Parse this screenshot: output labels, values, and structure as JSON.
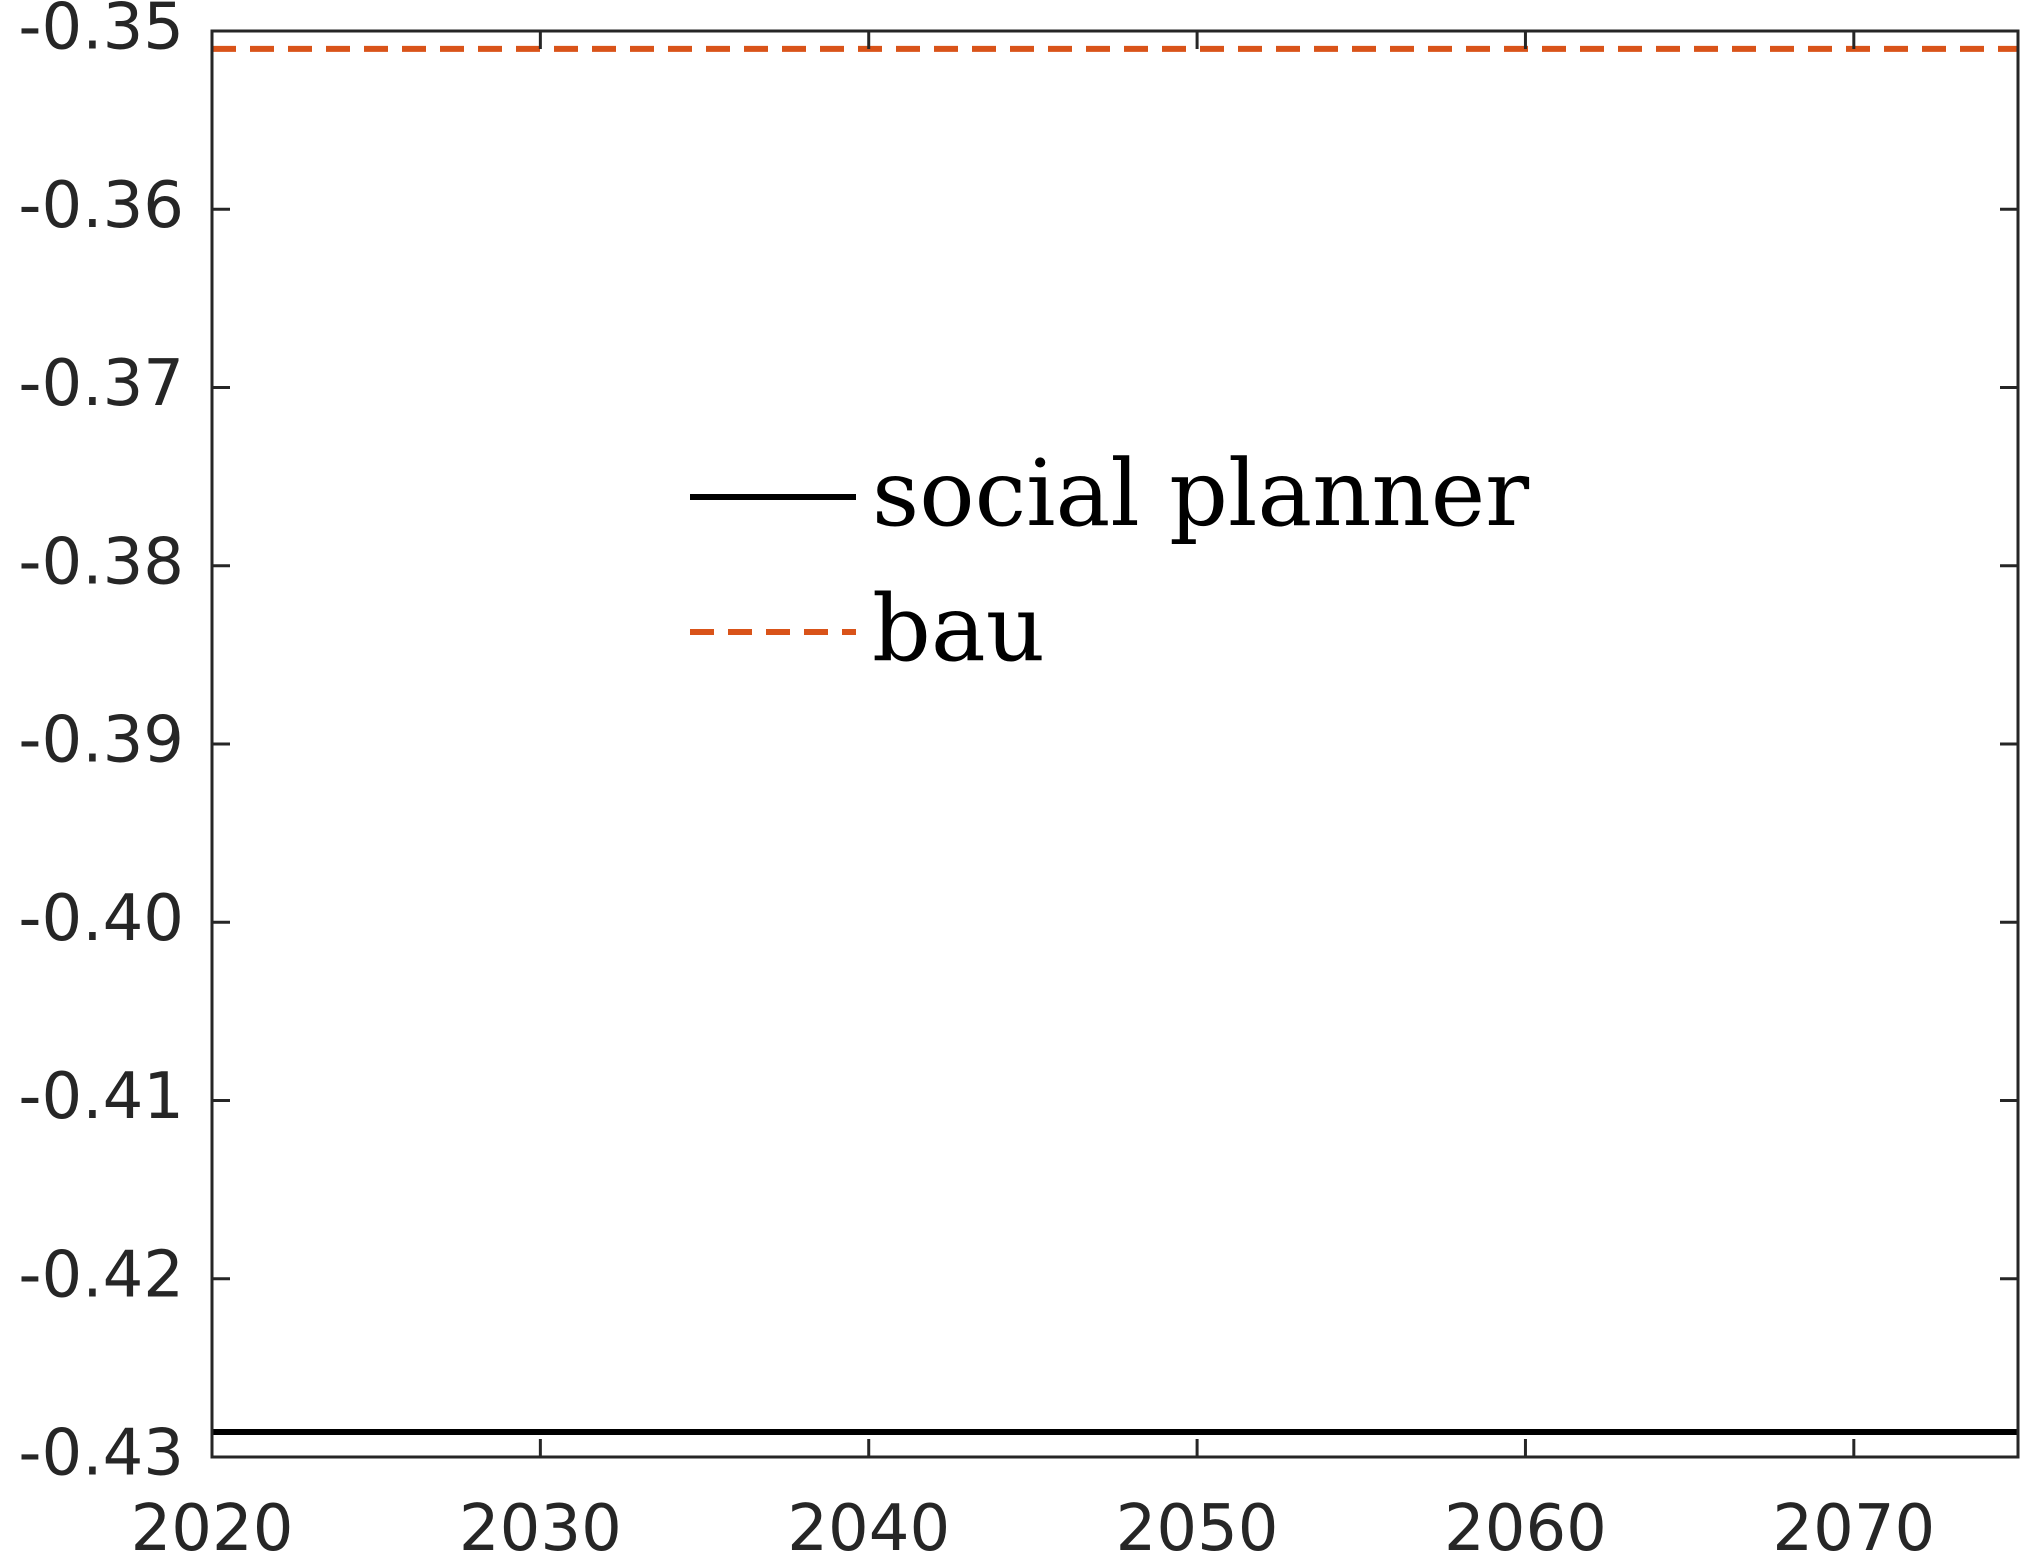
{
  "chart_data": {
    "type": "line",
    "title": "",
    "xlabel": "",
    "ylabel": "",
    "xlim": [
      2020,
      2075
    ],
    "ylim": [
      -0.43,
      -0.35
    ],
    "xticks": [
      2020,
      2030,
      2040,
      2050,
      2060,
      2070
    ],
    "xtick_labels": [
      "2020",
      "2030",
      "2040",
      "2050",
      "2060",
      "2070"
    ],
    "yticks": [
      -0.35,
      -0.36,
      -0.37,
      -0.38,
      -0.39,
      -0.4,
      -0.41,
      -0.42,
      -0.43
    ],
    "ytick_labels": [
      "-0.35",
      "-0.36",
      "-0.37",
      "-0.38",
      "-0.39",
      "-0.40",
      "-0.41",
      "-0.42",
      "-0.43"
    ],
    "grid": false,
    "legend_position": "upper-center",
    "series": [
      {
        "name": "social planner",
        "color": "#000000",
        "style": "solid",
        "x": [
          2020,
          2075
        ],
        "y": [
          -0.4286,
          -0.4286
        ]
      },
      {
        "name": "bau",
        "color": "#D95319",
        "style": "dashed",
        "x": [
          2020,
          2075
        ],
        "y": [
          -0.351,
          -0.351
        ]
      }
    ]
  }
}
